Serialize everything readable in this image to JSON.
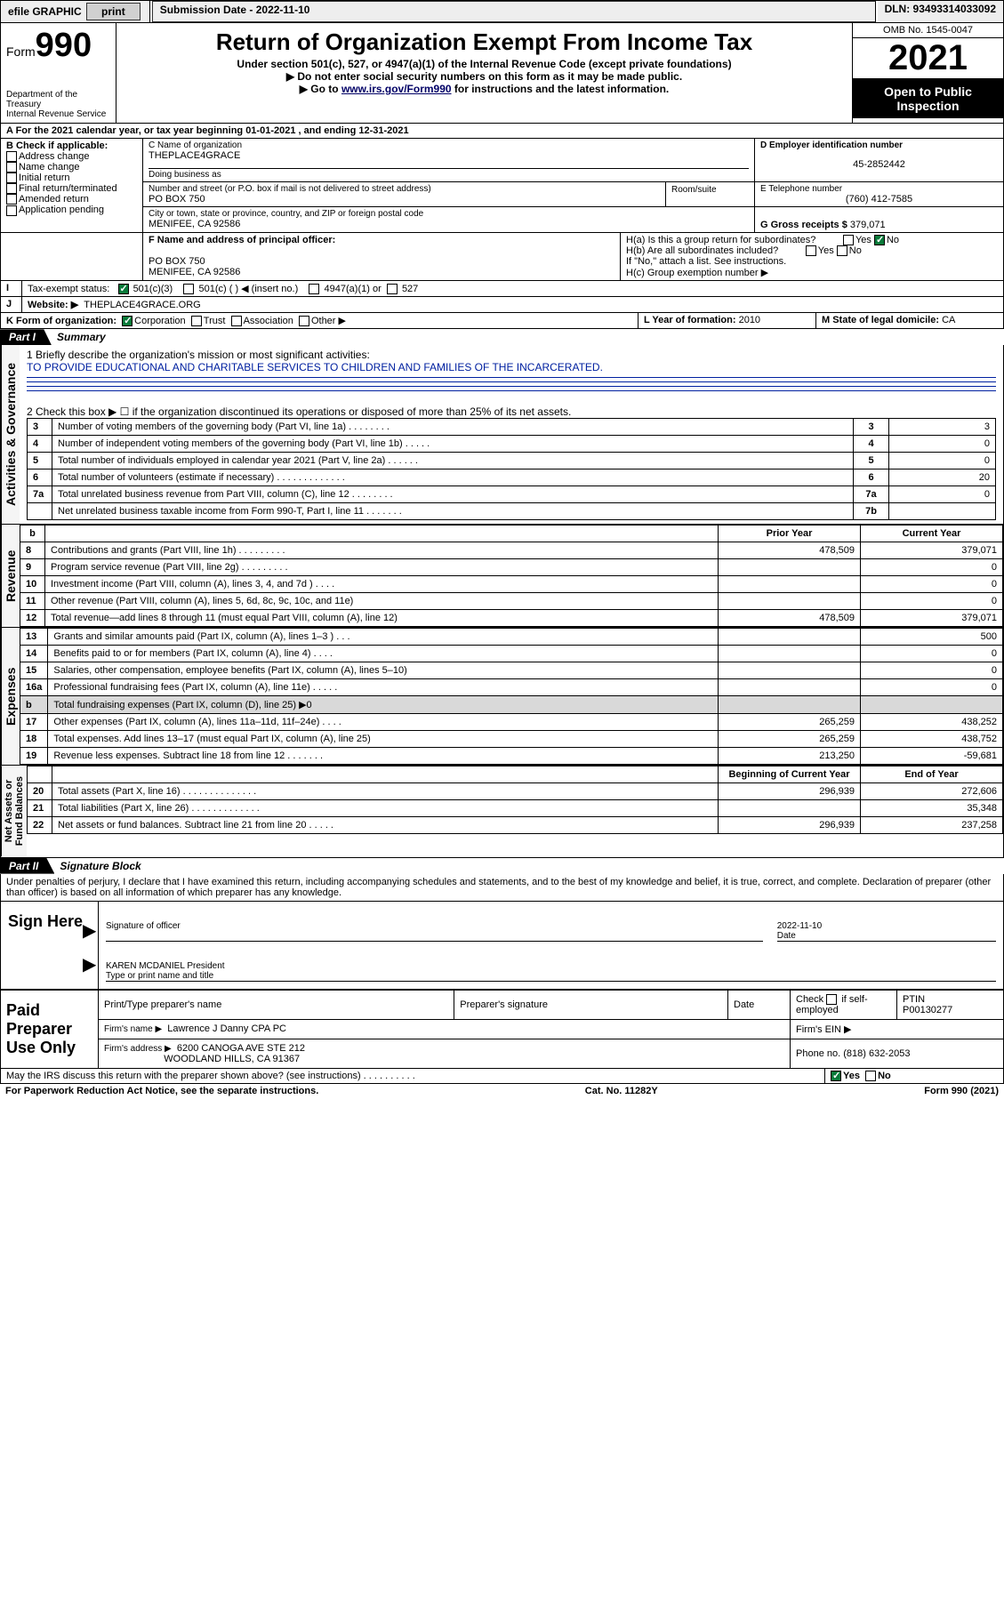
{
  "topbar": {
    "efile": "efile GRAPHIC",
    "print": "print",
    "submission": "Submission Date - 2022-11-10",
    "dln": "DLN: 93493314033092"
  },
  "header": {
    "form_prefix": "Form",
    "form_num": "990",
    "title": "Return of Organization Exempt From Income Tax",
    "subtitle": "Under section 501(c), 527, or 4947(a)(1) of the Internal Revenue Code (except private foundations)",
    "note1": "▶ Do not enter social security numbers on this form as it may be made public.",
    "note2a": "▶ Go to ",
    "note2link": "www.irs.gov/Form990",
    "note2b": " for instructions and the latest information.",
    "dept": "Department of the Treasury\nInternal Revenue Service",
    "omb": "OMB No. 1545-0047",
    "year": "2021",
    "openpub": "Open to Public Inspection"
  },
  "section_a": "A For the 2021 calendar year, or tax year beginning 01-01-2021   , and ending 12-31-2021",
  "b": {
    "label": "B Check if applicable:",
    "items": [
      "Address change",
      "Name change",
      "Initial return",
      "Final return/terminated",
      "Amended return",
      "Application pending"
    ]
  },
  "c": {
    "name_label": "C Name of organization",
    "name": "THEPLACE4GRACE",
    "dba_label": "Doing business as",
    "addr_label": "Number and street (or P.O. box if mail is not delivered to street address)",
    "addr": "PO BOX 750",
    "room_label": "Room/suite",
    "city_label": "City or town, state or province, country, and ZIP or foreign postal code",
    "city": "MENIFEE, CA  92586"
  },
  "d": {
    "label": "D Employer identification number",
    "value": "45-2852442"
  },
  "e": {
    "label": "E Telephone number",
    "value": "(760) 412-7585"
  },
  "g": {
    "label": "G Gross receipts $",
    "value": "379,071"
  },
  "f": {
    "label": "F  Name and address of principal officer:",
    "addr1": "PO BOX 750",
    "addr2": "MENIFEE, CA  92586"
  },
  "h": {
    "a": "H(a)  Is this a group return for subordinates?",
    "b": "H(b)  Are all subordinates included?",
    "note": "If \"No,\" attach a list. See instructions.",
    "c": "H(c)  Group exemption number ▶",
    "yes": "Yes",
    "no": "No"
  },
  "i": {
    "label": "Tax-exempt status:",
    "opt1": "501(c)(3)",
    "opt2": "501(c) (  ) ◀ (insert no.)",
    "opt3": "4947(a)(1) or",
    "opt4": "527"
  },
  "j": {
    "label": "Website: ▶",
    "value": "THEPLACE4GRACE.ORG"
  },
  "k": {
    "label": "K Form of organization:",
    "opt1": "Corporation",
    "opt2": "Trust",
    "opt3": "Association",
    "opt4": "Other ▶"
  },
  "l": {
    "label": "L Year of formation:",
    "value": "2010"
  },
  "m": {
    "label": "M State of legal domicile:",
    "value": "CA"
  },
  "part1": {
    "label": "Part I",
    "title": "Summary"
  },
  "summary": {
    "line1a": "1  Briefly describe the organization's mission or most significant activities:",
    "line1b": "TO PROVIDE EDUCATIONAL AND CHARITABLE SERVICES TO CHILDREN AND FAMILIES OF THE INCARCERATED.",
    "line2": "2  Check this box ▶ ☐  if the organization discontinued its operations or disposed of more than 25% of its net assets.",
    "rows_top": [
      {
        "n": "3",
        "text": "Number of voting members of the governing body (Part VI, line 1a)  .   .   .   .   .   .   .   .",
        "k": "3",
        "v": "3"
      },
      {
        "n": "4",
        "text": "Number of independent voting members of the governing body (Part VI, line 1b)   .   .   .   .   .",
        "k": "4",
        "v": "0"
      },
      {
        "n": "5",
        "text": "Total number of individuals employed in calendar year 2021 (Part V, line 2a)   .   .   .   .   .   .",
        "k": "5",
        "v": "0"
      },
      {
        "n": "6",
        "text": "Total number of volunteers (estimate if necessary)   .   .   .   .   .   .   .   .   .   .   .   .   .",
        "k": "6",
        "v": "20"
      },
      {
        "n": "7a",
        "text": "Total unrelated business revenue from Part VIII, column (C), line 12   .   .   .   .   .   .   .   .",
        "k": "7a",
        "v": "0"
      },
      {
        "n": "",
        "text": "Net unrelated business taxable income from Form 990-T, Part I, line 11   .   .   .   .   .   .   .",
        "k": "7b",
        "v": ""
      }
    ],
    "hdr_prior": "Prior Year",
    "hdr_curr": "Current Year",
    "hdr_beg": "Beginning of Current Year",
    "hdr_end": "End of Year",
    "rev_rows": [
      {
        "n": "8",
        "text": "Contributions and grants (Part VIII, line 1h)   .   .   .   .   .   .   .   .   .",
        "p": "478,509",
        "c": "379,071"
      },
      {
        "n": "9",
        "text": "Program service revenue (Part VIII, line 2g)   .   .   .   .   .   .   .   .   .",
        "p": "",
        "c": "0"
      },
      {
        "n": "10",
        "text": "Investment income (Part VIII, column (A), lines 3, 4, and 7d )   .   .   .   .",
        "p": "",
        "c": "0"
      },
      {
        "n": "11",
        "text": "Other revenue (Part VIII, column (A), lines 5, 6d, 8c, 9c, 10c, and 11e)",
        "p": "",
        "c": "0"
      },
      {
        "n": "12",
        "text": "Total revenue—add lines 8 through 11 (must equal Part VIII, column (A), line 12)",
        "p": "478,509",
        "c": "379,071"
      }
    ],
    "exp_rows": [
      {
        "n": "13",
        "text": "Grants and similar amounts paid (Part IX, column (A), lines 1–3 )   .   .   .",
        "p": "",
        "c": "500"
      },
      {
        "n": "14",
        "text": "Benefits paid to or for members (Part IX, column (A), line 4)   .   .   .   .",
        "p": "",
        "c": "0"
      },
      {
        "n": "15",
        "text": "Salaries, other compensation, employee benefits (Part IX, column (A), lines 5–10)",
        "p": "",
        "c": "0"
      },
      {
        "n": "16a",
        "text": "Professional fundraising fees (Part IX, column (A), line 11e)   .   .   .   .   .",
        "p": "",
        "c": "0"
      },
      {
        "n": "b",
        "text": "Total fundraising expenses (Part IX, column (D), line 25) ▶0",
        "p": "—shade—",
        "c": "—shade—"
      },
      {
        "n": "17",
        "text": "Other expenses (Part IX, column (A), lines 11a–11d, 11f–24e)   .   .   .   .",
        "p": "265,259",
        "c": "438,252"
      },
      {
        "n": "18",
        "text": "Total expenses. Add lines 13–17 (must equal Part IX, column (A), line 25)",
        "p": "265,259",
        "c": "438,752"
      },
      {
        "n": "19",
        "text": "Revenue less expenses. Subtract line 18 from line 12   .   .   .   .   .   .   .",
        "p": "213,250",
        "c": "-59,681"
      }
    ],
    "na_rows": [
      {
        "n": "20",
        "text": "Total assets (Part X, line 16)   .   .   .   .   .   .   .   .   .   .   .   .   .   .",
        "p": "296,939",
        "c": "272,606"
      },
      {
        "n": "21",
        "text": "Total liabilities (Part X, line 26)   .   .   .   .   .   .   .   .   .   .   .   .   .",
        "p": "",
        "c": "35,348"
      },
      {
        "n": "22",
        "text": "Net assets or fund balances. Subtract line 21 from line 20   .   .   .   .   .",
        "p": "296,939",
        "c": "237,258"
      }
    ]
  },
  "vside": {
    "gov": "Activities & Governance",
    "rev": "Revenue",
    "exp": "Expenses",
    "na": "Net Assets or\nFund Balances"
  },
  "part2": {
    "label": "Part II",
    "title": "Signature Block"
  },
  "jurat": "Under penalties of perjury, I declare that I have examined this return, including accompanying schedules and statements, and to the best of my knowledge and belief, it is true, correct, and complete. Declaration of preparer (other than officer) is based on all information of which preparer has any knowledge.",
  "sign": {
    "here": "Sign Here",
    "sig_of_officer": "Signature of officer",
    "date_label": "Date",
    "date": "2022-11-10",
    "name_title_label": "Type or print name and title",
    "name_title": "KAREN MCDANIEL President"
  },
  "paid": {
    "label": "Paid Preparer Use Only",
    "h1": "Print/Type preparer's name",
    "h2": "Preparer's signature",
    "h3": "Date",
    "h4a": "Check",
    "h4b": "if self-employed",
    "h5": "PTIN",
    "ptin": "P00130277",
    "firm_name_label": "Firm's name    ▶",
    "firm_name": "Lawrence J Danny CPA PC",
    "firm_ein_label": "Firm's EIN ▶",
    "firm_addr_label": "Firm's address ▶",
    "firm_addr": "6200 CANOGA AVE STE 212",
    "firm_city": "WOODLAND HILLS, CA  91367",
    "phone_label": "Phone no.",
    "phone": "(818) 632-2053"
  },
  "discuss": "May the IRS discuss this return with the preparer shown above? (see instructions)   .   .   .   .   .   .   .   .   .   .",
  "footer": {
    "pra": "For Paperwork Reduction Act Notice, see the separate instructions.",
    "cat": "Cat. No. 11282Y",
    "form": "Form 990 (2021)"
  }
}
